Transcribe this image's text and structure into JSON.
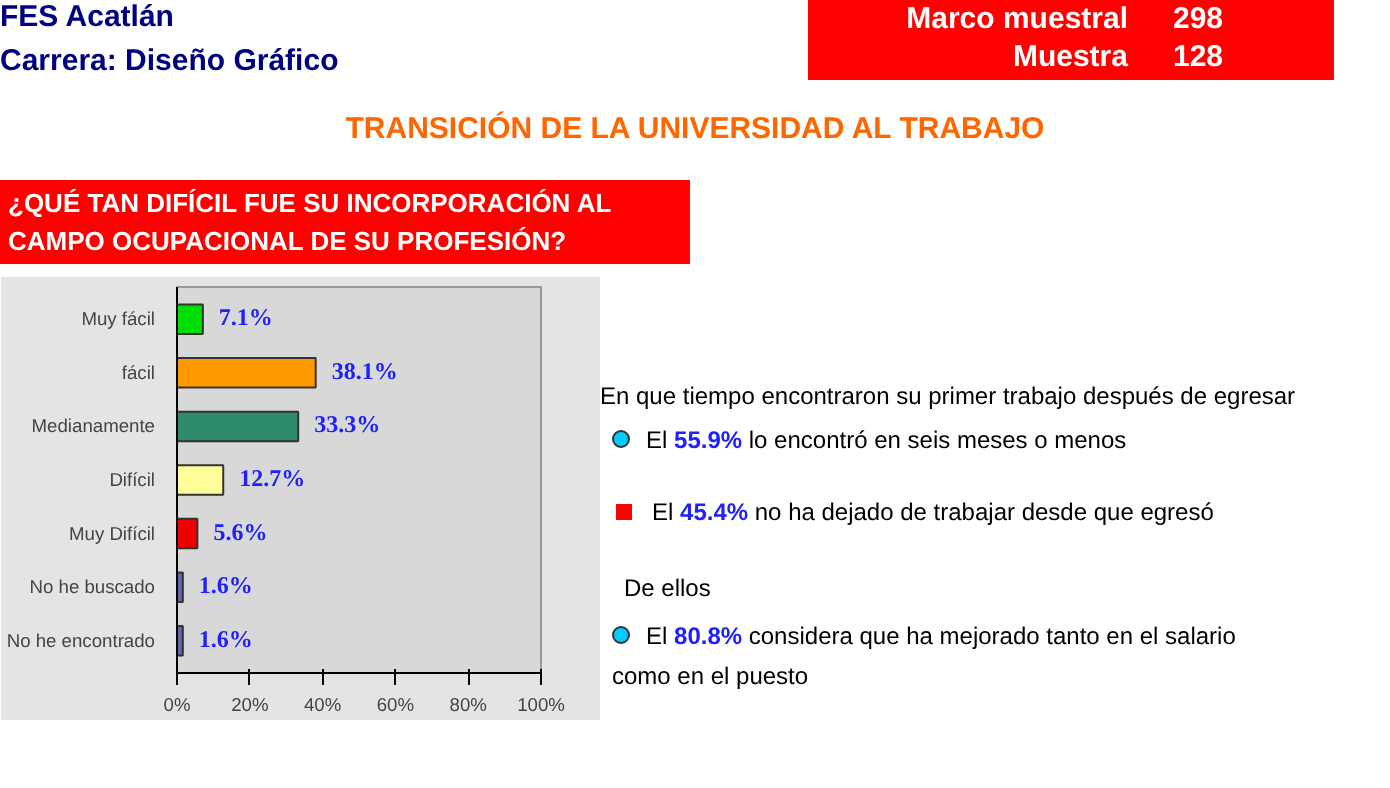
{
  "chart_data": {
    "type": "bar",
    "orientation": "horizontal",
    "title": "TRANSICIÓN DE LA UNIVERSIDAD AL TRABAJO",
    "subtitle": "¿QUÉ TAN DIFÍCIL FUE SU INCORPORACIÓN AL CAMPO OCUPACIONAL DE SU PROFESIÓN?",
    "categories": [
      "Muy fácil",
      "fácil",
      "Medianamente",
      "Difícil",
      "Muy Difícil",
      "No he buscado",
      "No he encontrado"
    ],
    "values": [
      7.1,
      38.1,
      33.3,
      12.7,
      5.6,
      1.6,
      1.6
    ],
    "value_labels": [
      "7.1%",
      "38.1%",
      "33.3%",
      "12.7%",
      "5.6%",
      "1.6%",
      "1.6%"
    ],
    "colors": [
      "#00dd00",
      "#ff9900",
      "#2e8b6a",
      "#ffff99",
      "#ee0000",
      "#6666aa",
      "#6666aa"
    ],
    "xlim": [
      0,
      100
    ],
    "xticks": [
      {
        "value": 0,
        "label": "0%"
      },
      {
        "value": 20,
        "label": "20%"
      },
      {
        "value": 40,
        "label": "40%"
      },
      {
        "value": 60,
        "label": "60%"
      },
      {
        "value": 80,
        "label": "80%"
      },
      {
        "value": 100,
        "label": "100%"
      }
    ],
    "grid": false,
    "annotations": [
      "FES Acatlán",
      "Carrera: Diseño Gráfico",
      "Marco muestral 298",
      "Muestra 128",
      "En que tiempo encontraron su primer trabajo después de egresar",
      "El 55.9% lo encontró en seis meses o menos",
      "El 45.4% no ha dejado de trabajar desde que egresó",
      "De ellos",
      "El 80.8% considera que ha mejorado tanto en el salario como en el puesto"
    ]
  }
}
